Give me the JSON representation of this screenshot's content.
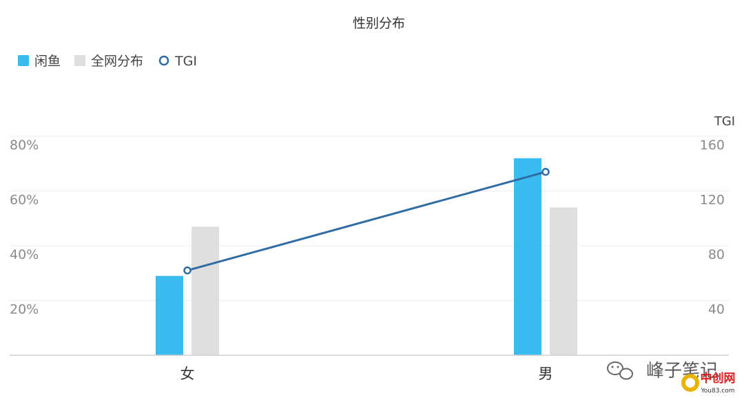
{
  "chart_data": {
    "type": "bar",
    "title": "性别分布",
    "categories": [
      "女",
      "男"
    ],
    "series": [
      {
        "name": "闲鱼",
        "kind": "bar",
        "axis": "left",
        "color": "#3bbcf0",
        "values": [
          29,
          72
        ]
      },
      {
        "name": "全网分布",
        "kind": "bar",
        "axis": "left",
        "color": "#dedede",
        "values": [
          47,
          54
        ]
      },
      {
        "name": "TGI",
        "kind": "line",
        "axis": "right",
        "color": "#2f6ca3",
        "values": [
          62,
          134
        ]
      }
    ],
    "y_left": {
      "min": 0,
      "max": 80,
      "ticks": [
        20,
        40,
        60,
        80
      ],
      "tick_labels": [
        "20%",
        "40%",
        "60%",
        "80%"
      ]
    },
    "y_right": {
      "label": "TGI",
      "min": 0,
      "max": 160,
      "ticks": [
        40,
        80,
        120,
        160
      ],
      "tick_labels": [
        "40",
        "80",
        "120",
        "160"
      ]
    },
    "grid": true,
    "legend_position": "top-left"
  },
  "watermark": {
    "text": "峰子笔记",
    "logo_text": "中创网",
    "logo_subtext": "You83.com"
  }
}
